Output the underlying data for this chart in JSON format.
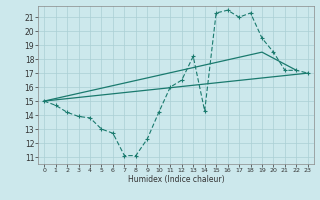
{
  "xlabel": "Humidex (Indice chaleur)",
  "xlim": [
    -0.5,
    23.5
  ],
  "ylim": [
    10.5,
    21.8
  ],
  "yticks": [
    11,
    12,
    13,
    14,
    15,
    16,
    17,
    18,
    19,
    20,
    21
  ],
  "xticks": [
    0,
    1,
    2,
    3,
    4,
    5,
    6,
    7,
    8,
    9,
    10,
    11,
    12,
    13,
    14,
    15,
    16,
    17,
    18,
    19,
    20,
    21,
    22,
    23
  ],
  "bg_color": "#cce8ec",
  "grid_color": "#aacfd4",
  "line_color": "#1a7a6e",
  "line1_x": [
    0,
    1,
    2,
    3,
    4,
    5,
    6,
    7,
    8,
    9,
    10,
    11,
    12,
    13,
    14,
    15,
    16,
    17,
    18,
    19,
    20,
    21,
    22,
    23
  ],
  "line1_y": [
    15.0,
    14.7,
    14.2,
    13.9,
    13.8,
    13.0,
    12.7,
    11.1,
    11.1,
    12.3,
    14.2,
    16.0,
    16.5,
    18.2,
    14.3,
    21.3,
    21.5,
    21.0,
    21.3,
    19.5,
    18.5,
    17.2,
    17.2,
    17.0
  ],
  "line2_x": [
    0,
    23
  ],
  "line2_y": [
    15.0,
    17.0
  ],
  "line3_x": [
    0,
    19,
    22
  ],
  "line3_y": [
    15.0,
    18.5,
    17.2
  ]
}
